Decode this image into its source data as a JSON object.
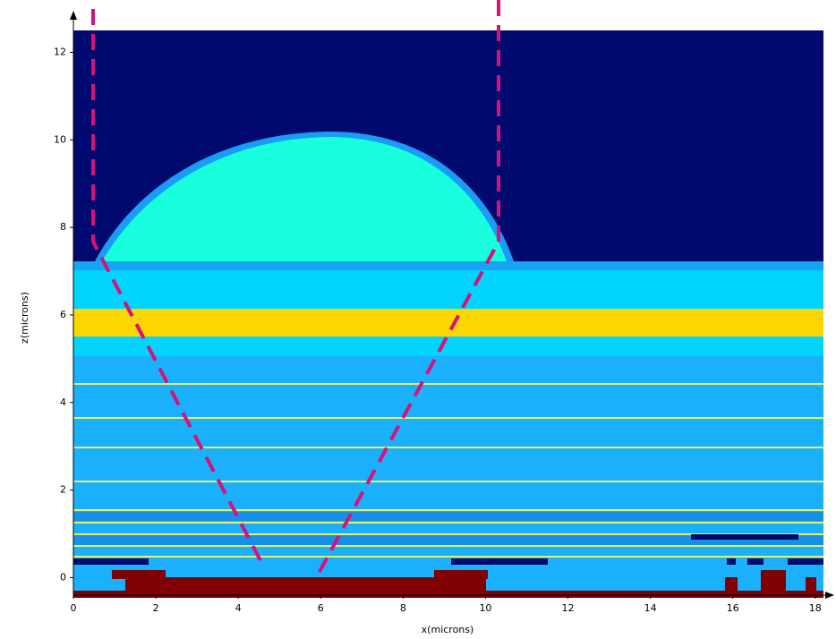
{
  "chart_data": {
    "type": "cross-section",
    "x_label": "x(microns)",
    "y_label": "z(microns)",
    "xlim": [
      0,
      18.2
    ],
    "ylim": [
      -0.4,
      12.5
    ],
    "xticks": [
      0,
      2,
      4,
      6,
      8,
      10,
      12,
      14,
      16,
      18
    ],
    "yticks": [
      0,
      2,
      4,
      6,
      8,
      10,
      12
    ]
  }
}
